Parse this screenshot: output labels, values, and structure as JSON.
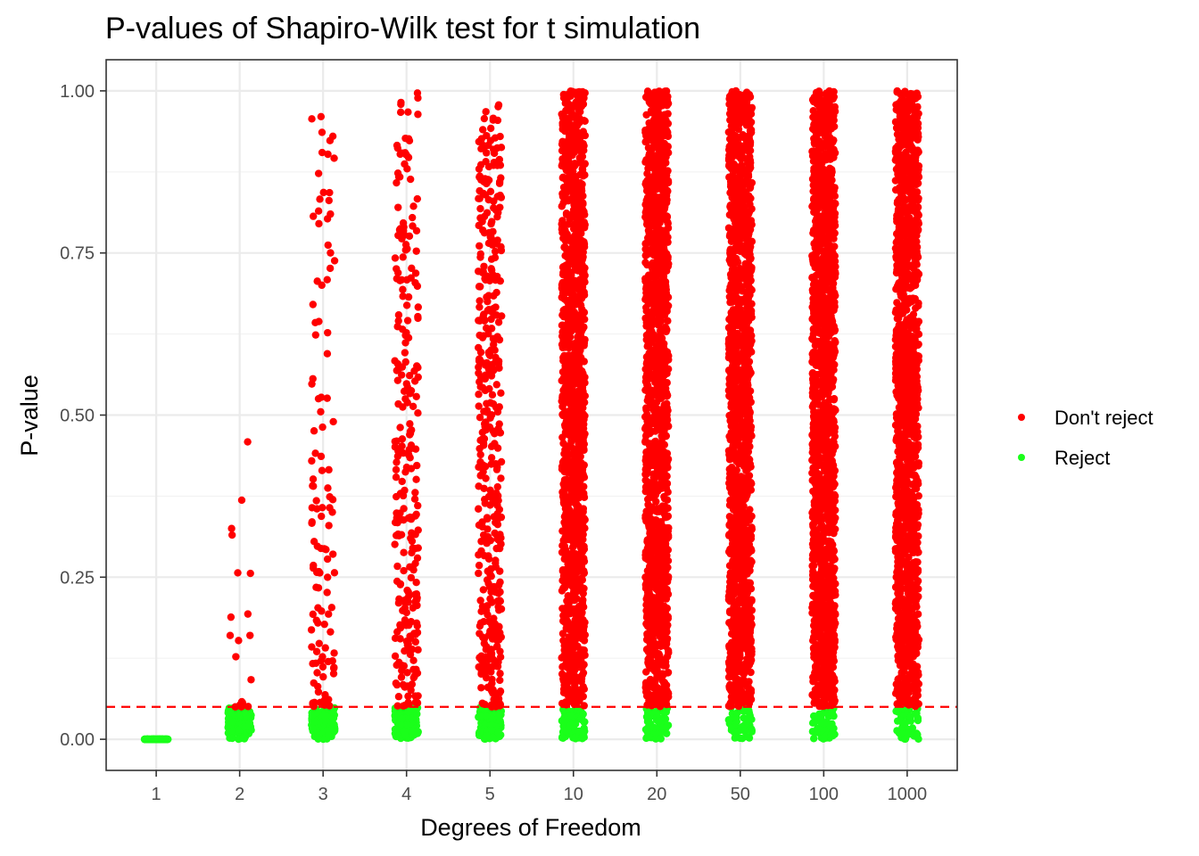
{
  "chart_data": {
    "type": "scatter",
    "title": "P-values of Shapiro-Wilk test for t simulation",
    "xlabel": "Degrees of Freedom",
    "ylabel": "P-value",
    "categories": [
      "1",
      "2",
      "3",
      "4",
      "5",
      "10",
      "20",
      "50",
      "100",
      "1000"
    ],
    "ylim": [
      -0.048,
      1.048
    ],
    "yticks": [
      0.0,
      0.25,
      0.5,
      0.75,
      1.0
    ],
    "ytick_labels": [
      "0.00",
      "0.25",
      "0.50",
      "0.75",
      "1.00"
    ],
    "significance_level": 0.05,
    "grid": true,
    "legend": {
      "position": "right",
      "entries": [
        {
          "label": "Don't reject",
          "color": "#ff0000"
        },
        {
          "label": "Reject",
          "color": "#1aff1a"
        }
      ]
    },
    "series_summary": [
      {
        "df": "1",
        "reject_points": 200,
        "not_reject_points": 0,
        "max_p": 0.0
      },
      {
        "df": "2",
        "reject_points": 180,
        "not_reject_points": 20,
        "max_p": 0.48
      },
      {
        "df": "3",
        "reject_points": 120,
        "not_reject_points": 120,
        "max_p": 0.985
      },
      {
        "df": "4",
        "reject_points": 140,
        "not_reject_points": 260,
        "max_p": 0.997
      },
      {
        "df": "5",
        "reject_points": 130,
        "not_reject_points": 420,
        "max_p": 0.98
      },
      {
        "df": "10",
        "reject_points": 90,
        "not_reject_points": 1300,
        "max_p": 1.0
      },
      {
        "df": "20",
        "reject_points": 60,
        "not_reject_points": 1400,
        "max_p": 1.0
      },
      {
        "df": "50",
        "reject_points": 50,
        "not_reject_points": 1450,
        "max_p": 1.0
      },
      {
        "df": "100",
        "reject_points": 50,
        "not_reject_points": 1450,
        "max_p": 1.0
      },
      {
        "df": "1000",
        "reject_points": 50,
        "not_reject_points": 1450,
        "max_p": 1.0
      }
    ]
  }
}
